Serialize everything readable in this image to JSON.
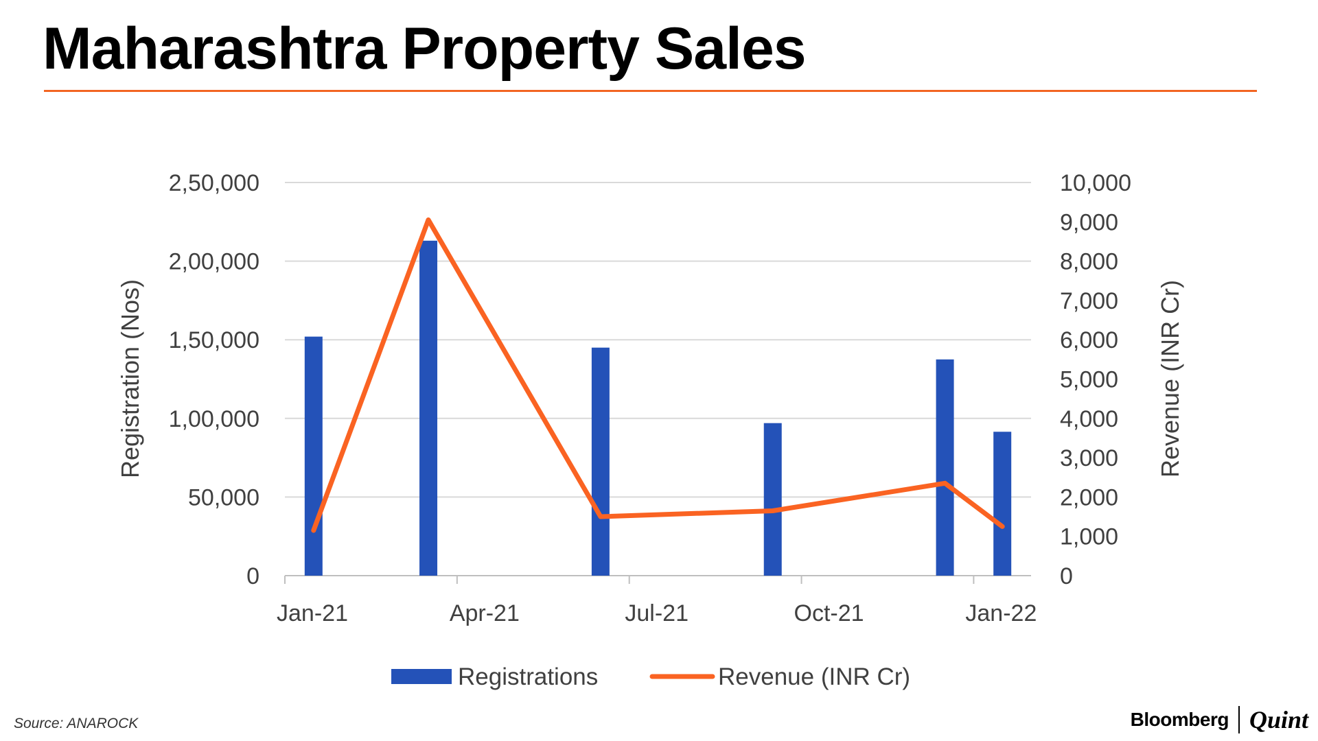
{
  "header": {
    "title": "Maharashtra Property Sales"
  },
  "chart_data": {
    "type": "bar+line",
    "title": "Maharashtra Property Sales",
    "x_ticks": [
      "Jan-21",
      "Apr-21",
      "Jul-21",
      "Oct-21",
      "Jan-22"
    ],
    "x_range": [
      "Jan-21",
      "Jan-22"
    ],
    "categories": [
      "Jan-21",
      "Mar-21",
      "Jun-21",
      "Sep-21",
      "Dec-21",
      "Jan-22"
    ],
    "series": [
      {
        "name": "Registrations",
        "type": "bar",
        "axis": "left",
        "color": "#2452b8",
        "values": [
          152000,
          213000,
          145000,
          97000,
          137500,
          91500
        ]
      },
      {
        "name": "Revenue (INR Cr)",
        "type": "line",
        "axis": "right",
        "color": "#fa6322",
        "values": [
          1150,
          9050,
          1500,
          1650,
          2350,
          1250
        ]
      }
    ],
    "ylabel": "Registration (Nos)",
    "ylim": [
      0,
      250000
    ],
    "yticks": [
      0,
      50000,
      100000,
      150000,
      200000,
      250000
    ],
    "ytick_labels": [
      "0",
      "50,000",
      "1,00,000",
      "1,50,000",
      "2,00,000",
      "2,50,000"
    ],
    "y2label": "Revenue (INR Cr)",
    "y2lim": [
      0,
      10000
    ],
    "y2ticks": [
      0,
      1000,
      2000,
      3000,
      4000,
      5000,
      6000,
      7000,
      8000,
      9000,
      10000
    ],
    "y2tick_labels": [
      "0",
      "1,000",
      "2,000",
      "3,000",
      "4,000",
      "5,000",
      "6,000",
      "7,000",
      "8,000",
      "9,000",
      "10,000"
    ],
    "grid": true,
    "legend": {
      "position": "bottom",
      "entries": [
        "Registrations",
        "Revenue (INR Cr)"
      ]
    }
  },
  "footer": {
    "source": "Source: ANAROCK",
    "brand_left": "Bloomberg",
    "brand_right": "Quint"
  }
}
